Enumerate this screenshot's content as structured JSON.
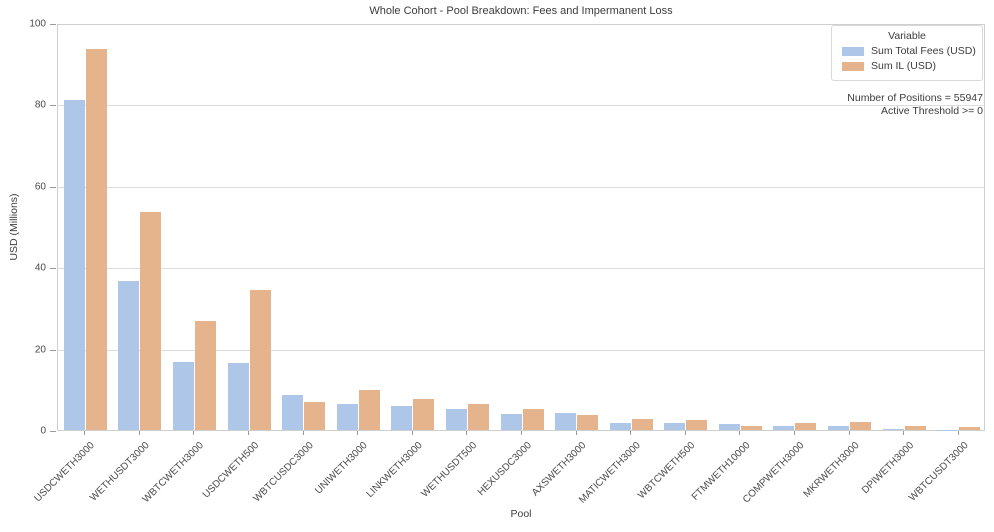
{
  "chart_data": {
    "type": "bar",
    "title": "Whole Cohort - Pool Breakdown: Fees and Impermanent Loss",
    "xlabel": "Pool",
    "ylabel": "USD (Millions)",
    "ylim": [
      0,
      100
    ],
    "yticks": [
      0,
      20,
      40,
      60,
      80,
      100
    ],
    "grid": true,
    "legend": {
      "title": "Variable",
      "position": "upper right"
    },
    "categories": [
      "USDCWETH3000",
      "WETHUSDT3000",
      "WBTCWETH3000",
      "USDCWETH500",
      "WBTCUSDC3000",
      "UNIWETH3000",
      "LINKWETH3000",
      "WETHUSDT500",
      "HEXUSDC3000",
      "AXSWETH3000",
      "MATICWETH3000",
      "WBTCWETH500",
      "FTMWETH10000",
      "COMPWETH3000",
      "MKRWETH3000",
      "DPIWETH3000",
      "WBTCUSDT3000"
    ],
    "series": [
      {
        "name": "Sum Total Fees (USD)",
        "color": "#aec7e8",
        "values": [
          81,
          36.5,
          16.7,
          16.5,
          8.5,
          6.3,
          5.9,
          5.2,
          4.0,
          4.1,
          1.8,
          1.8,
          1.5,
          1.0,
          0.9,
          0.3,
          0.05
        ]
      },
      {
        "name": "Sum IL (USD)",
        "color": "#e6b48c",
        "values": [
          93.5,
          53.5,
          26.7,
          34.3,
          7.0,
          9.9,
          7.6,
          6.5,
          5.2,
          3.8,
          2.7,
          2.5,
          1.1,
          1.8,
          1.9,
          1.1,
          0.8
        ]
      }
    ],
    "annotations": [
      "Number of Positions = 55947",
      "Active Threshold >= 0"
    ]
  },
  "style": {
    "gridline_color": "#dcdcdc",
    "axis_border_color": "#cfcfcf",
    "text_color": "#3c3c3c",
    "tick_color": "#4a4a4a"
  }
}
